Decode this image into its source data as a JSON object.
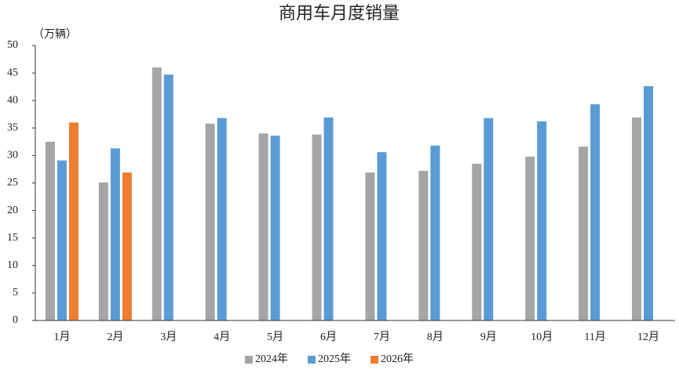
{
  "chart_data": {
    "type": "bar",
    "title": "商用车月度销量",
    "y_unit": "（万辆）",
    "categories": [
      "1月",
      "2月",
      "3月",
      "4月",
      "5月",
      "6月",
      "7月",
      "8月",
      "9月",
      "10月",
      "11月",
      "12月"
    ],
    "series": [
      {
        "name": "2024年",
        "color": "#a5a5a5",
        "values": [
          32.5,
          25.1,
          46.0,
          35.8,
          34.0,
          33.8,
          26.9,
          27.2,
          28.5,
          29.8,
          31.6,
          36.9
        ]
      },
      {
        "name": "2025年",
        "color": "#5b9bd5",
        "values": [
          29.1,
          31.3,
          44.7,
          36.8,
          33.6,
          36.9,
          30.6,
          31.8,
          36.8,
          36.2,
          39.3,
          42.6
        ]
      },
      {
        "name": "2026年",
        "color": "#ed7d31",
        "values": [
          36.0,
          26.9,
          null,
          null,
          null,
          null,
          null,
          null,
          null,
          null,
          null,
          null
        ]
      }
    ],
    "ylim": [
      0,
      50
    ],
    "yticks": [
      0,
      5,
      10,
      15,
      20,
      25,
      30,
      35,
      40,
      45,
      50
    ],
    "grid": false,
    "legend": "bottom"
  }
}
